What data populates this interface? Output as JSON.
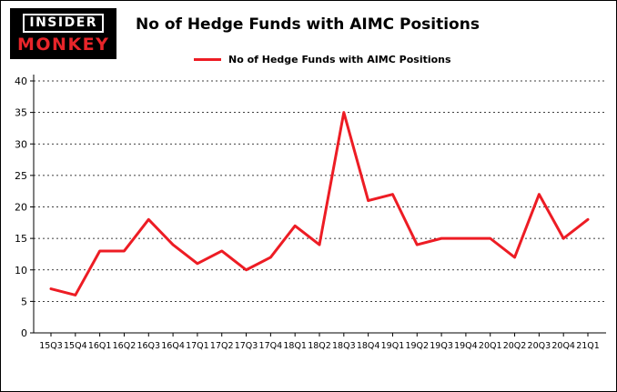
{
  "logo": {
    "line1": "INSIDER",
    "line2": "MONKEY"
  },
  "header": {
    "title": "No of Hedge Funds with AIMC Positions"
  },
  "legend": {
    "label": "No of Hedge Funds with AIMC Positions"
  },
  "colors": {
    "line": "#ed1c24",
    "logo_red": "#e8252a",
    "background": "#ffffff",
    "frame": "#000000",
    "text": "#000000"
  },
  "chart_data": {
    "type": "line",
    "title": "No of Hedge Funds with AIMC Positions",
    "categories": [
      "15Q3",
      "15Q4",
      "16Q1",
      "16Q2",
      "16Q3",
      "16Q4",
      "17Q1",
      "17Q2",
      "17Q3",
      "17Q4",
      "18Q1",
      "18Q2",
      "18Q3",
      "18Q4",
      "19Q1",
      "19Q2",
      "19Q3",
      "19Q4",
      "20Q1",
      "20Q2",
      "20Q3",
      "20Q4",
      "21Q1"
    ],
    "series": [
      {
        "name": "No of Hedge Funds with AIMC Positions",
        "values": [
          7,
          6,
          13,
          13,
          18,
          14,
          11,
          13,
          10,
          12,
          17,
          14,
          35,
          21,
          22,
          14,
          15,
          15,
          15,
          12,
          22,
          15,
          18
        ]
      }
    ],
    "xlabel": "",
    "ylabel": "",
    "ylim": [
      0,
      40
    ],
    "yticks": [
      0,
      5,
      10,
      15,
      20,
      25,
      30,
      35,
      40
    ],
    "grid": "horizontal-dashed",
    "legend_position": "top"
  }
}
